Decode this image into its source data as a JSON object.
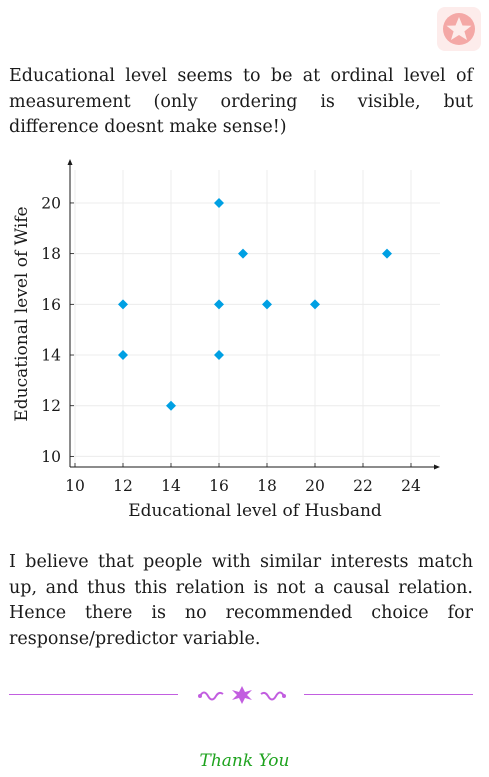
{
  "logo_icon": "star-badge-icon",
  "paragraphs": {
    "first": "Educational level seems to be at ordinal level of measurement (only ordering is visible, but difference doesnt make sense!)",
    "second": "I believe that people with similar interests match up, and thus this relation is not a causal relation. Hence there is no recommended choice for response/predictor variable."
  },
  "chart_data": {
    "type": "scatter",
    "xlabel": "Educational level of Husband",
    "ylabel": "Educational level of Wife",
    "xlim": [
      10,
      25
    ],
    "ylim": [
      9.7,
      21.3
    ],
    "x_ticks": [
      "10",
      "12",
      "14",
      "16",
      "18",
      "20",
      "22",
      "24"
    ],
    "y_ticks": [
      "10",
      "12",
      "14",
      "16",
      "18",
      "20"
    ],
    "grid": true,
    "marker": "diamond",
    "color": "#00a0e3",
    "points": [
      {
        "x": 12,
        "y": 14
      },
      {
        "x": 12,
        "y": 16
      },
      {
        "x": 14,
        "y": 12
      },
      {
        "x": 16,
        "y": 14
      },
      {
        "x": 16,
        "y": 16
      },
      {
        "x": 16,
        "y": 20
      },
      {
        "x": 17,
        "y": 18
      },
      {
        "x": 18,
        "y": 16
      },
      {
        "x": 20,
        "y": 16
      },
      {
        "x": 23,
        "y": 18
      }
    ]
  },
  "divider": {
    "color": "#c25ee0",
    "ornament_icon": "floral-ornament-icon"
  },
  "closing": "Thank You"
}
